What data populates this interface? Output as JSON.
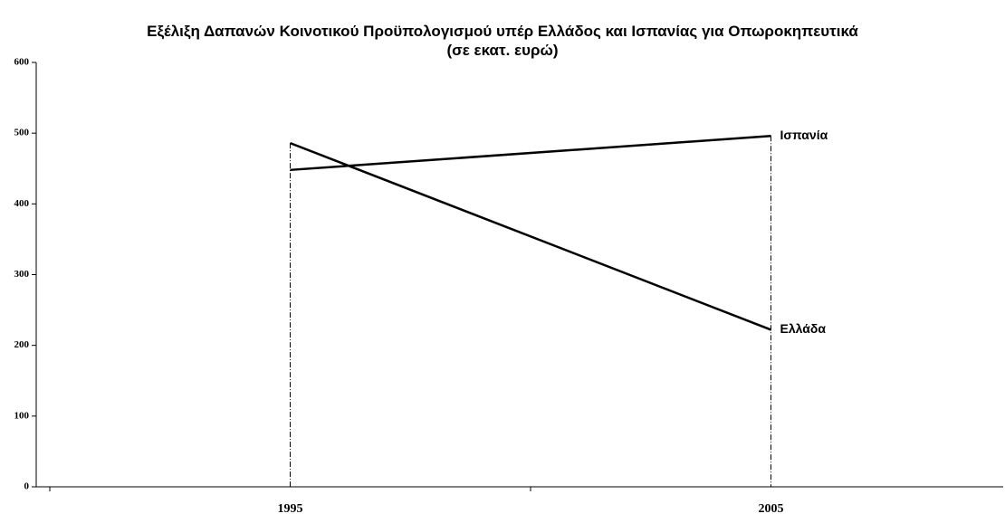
{
  "chart_data": {
    "type": "line",
    "title": "Εξέλιξη Δαπανών Κοινοτικού Προϋπολογισμού υπέρ Ελλάδος και Ισπανίας για Οπωροκηπευτικά (σε εκατ. ευρώ)",
    "categories": [
      "1995",
      "2005"
    ],
    "series": [
      {
        "name": "Ισπανία",
        "color": "#000000",
        "values": [
          448,
          496
        ]
      },
      {
        "name": "Ελλάδα",
        "color": "#000000",
        "values": [
          486,
          222
        ]
      }
    ],
    "ylim": [
      0,
      600
    ],
    "yticks": [
      0,
      100,
      200,
      300,
      400,
      500,
      600
    ],
    "drop_lines": true
  }
}
